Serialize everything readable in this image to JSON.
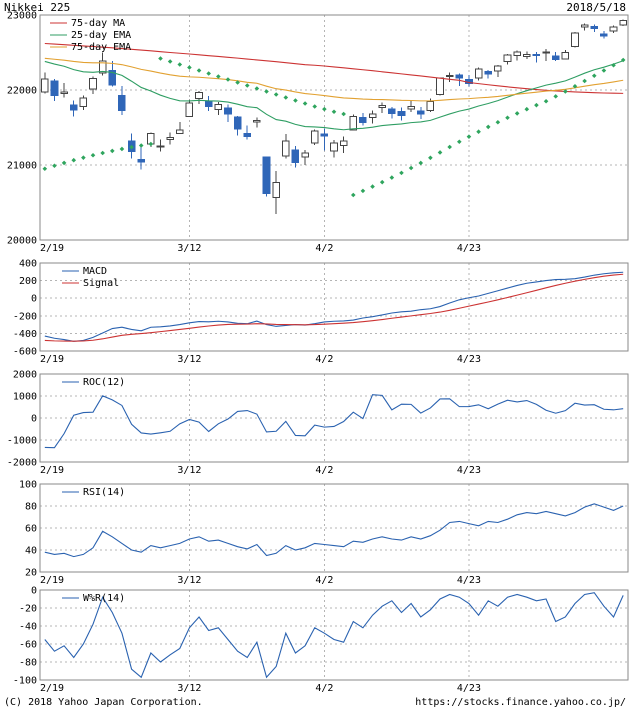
{
  "header": {
    "title": "Nikkei 225",
    "date": "2018/5/18"
  },
  "footer": {
    "copyright": "(C) 2018 Yahoo Japan Corporation.",
    "url": "https://stocks.finance.yahoo.co.jp/"
  },
  "colors": {
    "blue": "#2a62b0",
    "red": "#cc3333",
    "green": "#2f9e63",
    "orange": "#e2a131",
    "sar_green": "#2fa55e",
    "up_candle_outline": "#444444",
    "down_candle": "#2f66b8",
    "grid": "#b4b4b4",
    "border": "#8a8a8a",
    "text": "#000000"
  },
  "chart_data": [
    {
      "name": "price",
      "type": "candlestick",
      "title": "Nikkei 225 daily candlestick with moving averages and parabolic SAR",
      "ylim": [
        20000,
        23000
      ],
      "yticks": [
        23000,
        22000,
        21000,
        20000
      ],
      "xticks": [
        {
          "index": 0,
          "label": "2/19"
        },
        {
          "index": 15,
          "label": "3/12"
        },
        {
          "index": 29,
          "label": "4/2"
        },
        {
          "index": 44,
          "label": "4/23"
        }
      ],
      "candles": [
        [
          21973,
          22236,
          21955,
          22149
        ],
        [
          22121,
          22148,
          21856,
          21925
        ],
        [
          21955,
          22096,
          21900,
          21971
        ],
        [
          21798,
          21858,
          21646,
          21736
        ],
        [
          21778,
          21925,
          21736,
          21893
        ],
        [
          22012,
          22177,
          21950,
          22153
        ],
        [
          22227,
          22502,
          22192,
          22389
        ],
        [
          22263,
          22389,
          22047,
          22068
        ],
        [
          21925,
          22055,
          21665,
          21724
        ],
        [
          21322,
          21423,
          21087,
          21181
        ],
        [
          21072,
          21240,
          20937,
          21042
        ],
        [
          21280,
          21432,
          21239,
          21417
        ],
        [
          21252,
          21341,
          21179,
          21253
        ],
        [
          21337,
          21432,
          21274,
          21368
        ],
        [
          21420,
          21575,
          21412,
          21469
        ],
        [
          21650,
          21871,
          21637,
          21824
        ],
        [
          21890,
          21988,
          21812,
          21968
        ],
        [
          21852,
          21917,
          21718,
          21777
        ],
        [
          21740,
          21841,
          21664,
          21804
        ],
        [
          21760,
          21810,
          21573,
          21677
        ],
        [
          21640,
          21651,
          21393,
          21481
        ],
        [
          21422,
          21524,
          21343,
          21381
        ],
        [
          21572,
          21633,
          21500,
          21592
        ],
        [
          21107,
          21107,
          20578,
          20618
        ],
        [
          20570,
          20922,
          20347,
          20766
        ],
        [
          21118,
          21414,
          21087,
          21317
        ],
        [
          21200,
          21254,
          20968,
          21032
        ],
        [
          21110,
          21201,
          21003,
          21160
        ],
        [
          21292,
          21471,
          21268,
          21454
        ],
        [
          21411,
          21484,
          21191,
          21389
        ],
        [
          21189,
          21332,
          21100,
          21292
        ],
        [
          21263,
          21381,
          21160,
          21320
        ],
        [
          21469,
          21672,
          21464,
          21645
        ],
        [
          21633,
          21695,
          21530,
          21567
        ],
        [
          21636,
          21724,
          21551,
          21678
        ],
        [
          21766,
          21831,
          21695,
          21794
        ],
        [
          21745,
          21774,
          21622,
          21687
        ],
        [
          21715,
          21765,
          21591,
          21660
        ],
        [
          21745,
          21852,
          21704,
          21779
        ],
        [
          21717,
          21772,
          21616,
          21679
        ],
        [
          21726,
          21884,
          21707,
          21847
        ],
        [
          21943,
          22167,
          21926,
          22158
        ],
        [
          22177,
          22232,
          22107,
          22191
        ],
        [
          22201,
          22219,
          22051,
          22162
        ],
        [
          22141,
          22201,
          22050,
          22088
        ],
        [
          22157,
          22302,
          22125,
          22278
        ],
        [
          22247,
          22266,
          22152,
          22215
        ],
        [
          22251,
          22331,
          22171,
          22320
        ],
        [
          22380,
          22477,
          22338,
          22468
        ],
        [
          22461,
          22529,
          22394,
          22508
        ],
        [
          22445,
          22514,
          22414,
          22473
        ],
        [
          22476,
          22509,
          22370,
          22467
        ],
        [
          22509,
          22547,
          22385,
          22509
        ],
        [
          22451,
          22509,
          22387,
          22408
        ],
        [
          22412,
          22533,
          22405,
          22497
        ],
        [
          22577,
          22772,
          22570,
          22758
        ],
        [
          22841,
          22887,
          22796,
          22865
        ],
        [
          22845,
          22871,
          22775,
          22818
        ],
        [
          22748,
          22787,
          22689,
          22717
        ],
        [
          22785,
          22860,
          22762,
          22838
        ],
        [
          22870,
          22940,
          22851,
          22930
        ]
      ],
      "overlays": [
        {
          "name": "75-day MA",
          "color": "#cc3333",
          "style": "line",
          "legend": true,
          "values": [
            22620,
            22612,
            22604,
            22596,
            22588,
            22580,
            22571,
            22562,
            22553,
            22543,
            22533,
            22522,
            22511,
            22500,
            22490,
            22480,
            22469,
            22458,
            22447,
            22436,
            22425,
            22413,
            22401,
            22389,
            22377,
            22364,
            22351,
            22338,
            22330,
            22320,
            22308,
            22296,
            22283,
            22270,
            22257,
            22243,
            22229,
            22215,
            22201,
            22187,
            22172,
            22157,
            22143,
            22129,
            22100,
            22085,
            22070,
            22056,
            22042,
            22029,
            22017,
            22006,
            21996,
            21988,
            21981,
            21974,
            21969,
            21964,
            21960,
            21957,
            21955
          ]
        },
        {
          "name": "25-day EMA",
          "color": "#2f9e63",
          "style": "line",
          "legend": true,
          "values": [
            22381,
            22346,
            22317,
            22272,
            22243,
            22236,
            22248,
            22234,
            22195,
            22117,
            22034,
            21987,
            21931,
            21888,
            21856,
            21854,
            21863,
            21856,
            21852,
            21839,
            21811,
            21778,
            21764,
            21676,
            21606,
            21584,
            21542,
            21513,
            21508,
            21499,
            21483,
            21470,
            21483,
            21489,
            21504,
            21526,
            21538,
            21547,
            21565,
            21574,
            21595,
            21638,
            21681,
            21718,
            21746,
            21787,
            21820,
            21858,
            21905,
            21951,
            21991,
            22028,
            22065,
            22091,
            22122,
            22171,
            22224,
            22270,
            22304,
            22345,
            22390
          ]
        },
        {
          "name": "75-day EMA",
          "color": "#e2a131",
          "style": "line",
          "legend": true,
          "values": [
            22423,
            22410,
            22398,
            22381,
            22368,
            22362,
            22363,
            22355,
            22338,
            22308,
            22275,
            22252,
            22226,
            22203,
            22184,
            22175,
            22170,
            22160,
            22151,
            22139,
            22122,
            22103,
            22090,
            22051,
            22017,
            21999,
            21974,
            21953,
            21940,
            21926,
            21909,
            21894,
            21887,
            21879,
            21874,
            21872,
            21867,
            21862,
            21860,
            21855,
            21855,
            21863,
            21872,
            21880,
            21885,
            21895,
            21903,
            21914,
            21929,
            21944,
            21958,
            21971,
            21985,
            21996,
            22009,
            22029,
            22051,
            22071,
            22088,
            22108,
            22130
          ]
        },
        {
          "name": "Parabolic SAR",
          "color": "#2fa55e",
          "style": "dots",
          "legend": false,
          "values": [
            20950,
            20990,
            21028,
            21064,
            21098,
            21130,
            21160,
            21188,
            21214,
            21238,
            21260,
            21280,
            22420,
            22380,
            22340,
            22300,
            22260,
            22220,
            22180,
            22140,
            22100,
            22060,
            22020,
            21980,
            21940,
            21900,
            21860,
            21820,
            21780,
            21745,
            21710,
            21680,
            20600,
            20655,
            20712,
            20771,
            20832,
            20895,
            20960,
            21027,
            21096,
            21167,
            21240,
            21310,
            21378,
            21444,
            21508,
            21570,
            21630,
            21688,
            21744,
            21798,
            21850,
            21915,
            21980,
            22050,
            22120,
            22190,
            22260,
            22330,
            22400
          ]
        }
      ]
    },
    {
      "name": "macd",
      "type": "line",
      "title": "MACD",
      "ylim": [
        -600,
        400
      ],
      "yticks": [
        400,
        200,
        0,
        -200,
        -400,
        -600
      ],
      "xticks": [
        {
          "index": 0,
          "label": "2/19"
        },
        {
          "index": 15,
          "label": "3/12"
        },
        {
          "index": 29,
          "label": "4/2"
        },
        {
          "index": 44,
          "label": "4/23"
        }
      ],
      "series": [
        {
          "name": "MACD",
          "color": "#2a62b0",
          "values": [
            -430,
            -455,
            -470,
            -490,
            -480,
            -445,
            -395,
            -345,
            -330,
            -355,
            -370,
            -330,
            -325,
            -315,
            -300,
            -280,
            -265,
            -268,
            -262,
            -270,
            -285,
            -290,
            -260,
            -300,
            -320,
            -310,
            -300,
            -305,
            -290,
            -270,
            -262,
            -258,
            -248,
            -225,
            -210,
            -190,
            -168,
            -155,
            -148,
            -130,
            -120,
            -95,
            -55,
            -18,
            5,
            25,
            55,
            85,
            115,
            145,
            170,
            185,
            200,
            212,
            215,
            222,
            240,
            262,
            278,
            288,
            295
          ]
        },
        {
          "name": "Signal",
          "color": "#cc3333",
          "values": [
            -480,
            -485,
            -487,
            -488,
            -486,
            -478,
            -462,
            -442,
            -422,
            -410,
            -402,
            -392,
            -380,
            -368,
            -355,
            -342,
            -328,
            -316,
            -305,
            -298,
            -295,
            -294,
            -290,
            -292,
            -298,
            -300,
            -301,
            -302,
            -300,
            -295,
            -290,
            -284,
            -277,
            -267,
            -256,
            -243,
            -228,
            -214,
            -201,
            -187,
            -174,
            -158,
            -138,
            -114,
            -90,
            -67,
            -43,
            -18,
            8,
            35,
            62,
            90,
            118,
            145,
            170,
            193,
            214,
            233,
            250,
            263,
            272
          ]
        }
      ]
    },
    {
      "name": "roc",
      "type": "line",
      "title": "ROC(12)",
      "ylim": [
        -2000,
        2000
      ],
      "yticks": [
        2000,
        1000,
        0,
        -1000,
        -2000
      ],
      "xticks": [
        {
          "index": 0,
          "label": "2/19"
        },
        {
          "index": 15,
          "label": "3/12"
        },
        {
          "index": 29,
          "label": "4/2"
        },
        {
          "index": 44,
          "label": "4/23"
        }
      ],
      "series": [
        {
          "name": "ROC(12)",
          "color": "#2a62b0",
          "values": [
            -1337,
            -1349,
            -711,
            126,
            248,
            263,
            1007,
            824,
            570,
            -284,
            -678,
            -732,
            -672,
            -603,
            -267,
            -69,
            -185,
            -612,
            -264,
            -47,
            300,
            339,
            175,
            -635,
            -602,
            -152,
            -792,
            -808,
            -323,
            -415,
            -385,
            -161,
            264,
            -25,
            1060,
            1028,
            370,
            628,
            619,
            225,
            458,
            866,
            871,
            517,
            521,
            600,
            421,
            633,
            808,
            729,
            794,
            620,
            351,
            217,
            335,
            670,
            587,
            603,
            397,
            370,
            422
          ]
        }
      ]
    },
    {
      "name": "rsi",
      "type": "line",
      "title": "RSI(14)",
      "ylim": [
        20,
        100
      ],
      "yticks": [
        100,
        80,
        60,
        40,
        20
      ],
      "xticks": [
        {
          "index": 0,
          "label": "2/19"
        },
        {
          "index": 15,
          "label": "3/12"
        },
        {
          "index": 29,
          "label": "4/2"
        },
        {
          "index": 44,
          "label": "4/23"
        }
      ],
      "series": [
        {
          "name": "RSI(14)",
          "color": "#2a62b0",
          "values": [
            38,
            36,
            37,
            34,
            36,
            42,
            57,
            52,
            46,
            40,
            38,
            44,
            42,
            44,
            46,
            50,
            52,
            48,
            49,
            46,
            43,
            41,
            45,
            35,
            37,
            44,
            40,
            42,
            46,
            45,
            44,
            43,
            48,
            47,
            50,
            52,
            50,
            49,
            52,
            50,
            53,
            58,
            65,
            66,
            64,
            62,
            66,
            65,
            68,
            72,
            74,
            73,
            75,
            73,
            71,
            74,
            79,
            82,
            79,
            76,
            80
          ]
        }
      ]
    },
    {
      "name": "wpr",
      "type": "line",
      "title": "W%R(14)",
      "ylim": [
        -100,
        0
      ],
      "yticks": [
        0,
        -20,
        -40,
        -60,
        -80,
        -100
      ],
      "xticks": [
        {
          "index": 0,
          "label": "2/19"
        },
        {
          "index": 15,
          "label": "3/12"
        },
        {
          "index": 29,
          "label": "4/2"
        },
        {
          "index": 44,
          "label": "4/23"
        }
      ],
      "series": [
        {
          "name": "W%R(14)",
          "color": "#2a62b0",
          "values": [
            -55,
            -68,
            -62,
            -75,
            -60,
            -38,
            -8,
            -25,
            -48,
            -88,
            -97,
            -70,
            -80,
            -72,
            -65,
            -42,
            -30,
            -45,
            -42,
            -55,
            -68,
            -75,
            -58,
            -97,
            -85,
            -48,
            -70,
            -62,
            -42,
            -48,
            -55,
            -58,
            -35,
            -42,
            -28,
            -18,
            -12,
            -25,
            -15,
            -30,
            -22,
            -10,
            -5,
            -8,
            -15,
            -28,
            -12,
            -18,
            -8,
            -5,
            -8,
            -12,
            -10,
            -35,
            -30,
            -15,
            -5,
            -3,
            -18,
            -30,
            -6
          ]
        }
      ]
    }
  ]
}
